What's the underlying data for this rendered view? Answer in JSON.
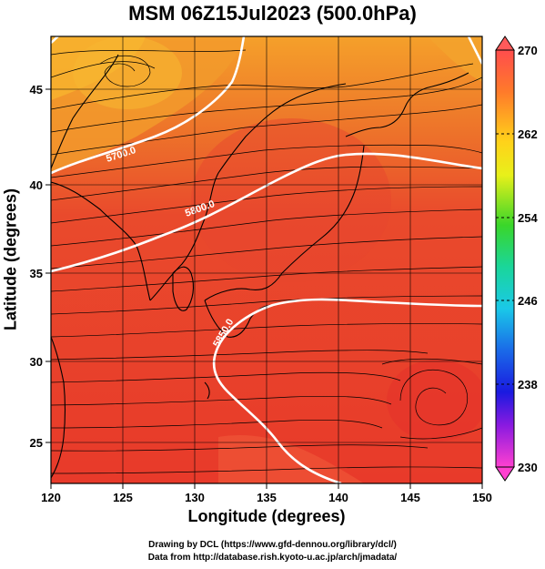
{
  "title": "MSM 06Z15Jul2023 (500.0hPa)",
  "xaxis": {
    "label": "Longitude (degrees)",
    "range": [
      120,
      150
    ],
    "ticks": [
      "120",
      "125",
      "130",
      "135",
      "140",
      "145",
      "150"
    ]
  },
  "yaxis": {
    "label": "Latitude  (degrees)",
    "range": [
      22.4,
      47.6
    ],
    "ticks": [
      "25",
      "30",
      "35",
      "40",
      "45"
    ]
  },
  "colorbar": {
    "min": 230,
    "max": 270,
    "ticks": [
      "270",
      "262",
      "254",
      "246",
      "238",
      "230"
    ]
  },
  "contours": [
    {
      "label": "5700.0"
    },
    {
      "label": "5800.0"
    },
    {
      "label": "5850.0"
    }
  ],
  "footer": {
    "line1": "Drawing by DCL (https://www.gfd-dennou.org/library/dcl/)",
    "line2": "Data from http://database.rish.kyoto-u.ac.jp/arch/jmadata/"
  },
  "colors": {
    "background_field": "#e83a2a",
    "north_field": "#f08a2a",
    "contour": "#ffffff",
    "streamline": "#000000"
  }
}
